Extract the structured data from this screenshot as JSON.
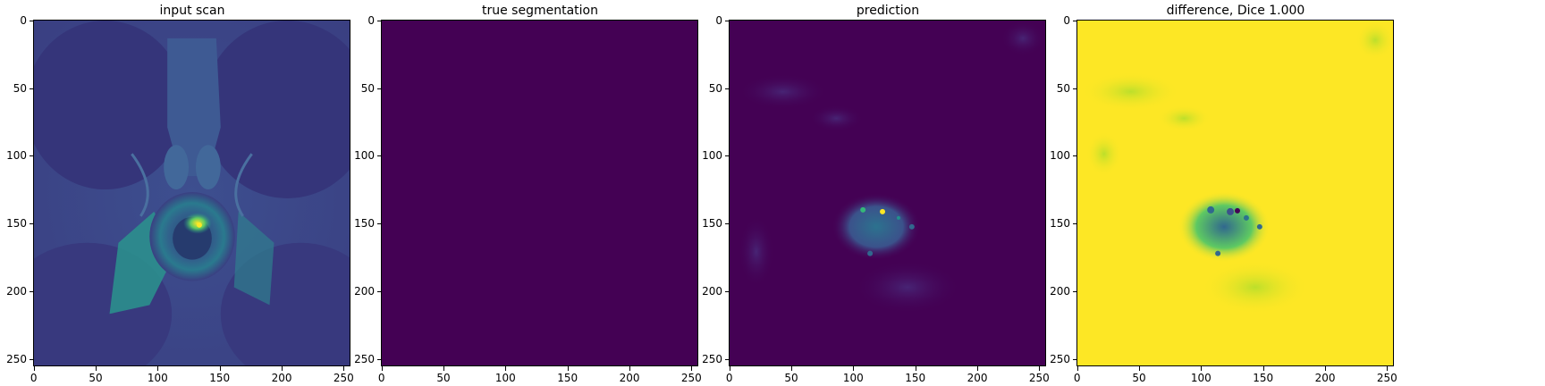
{
  "figure": {
    "panels": [
      {
        "id": "input",
        "title": "input scan"
      },
      {
        "id": "truth",
        "title": "true segmentation"
      },
      {
        "id": "pred",
        "title": "prediction"
      },
      {
        "id": "diff",
        "title": "difference, Dice 1.000"
      }
    ],
    "axes": {
      "yticks": [
        "0",
        "50",
        "100",
        "150",
        "200",
        "250"
      ],
      "xticks": [
        "0",
        "50",
        "100",
        "150",
        "200",
        "250"
      ]
    },
    "colors": {
      "viridis_dark": "#440154",
      "viridis_mid": "#21918c",
      "viridis_green": "#35b779",
      "viridis_yellow": "#fde725",
      "scan_bg": "#3b4b8c"
    }
  }
}
